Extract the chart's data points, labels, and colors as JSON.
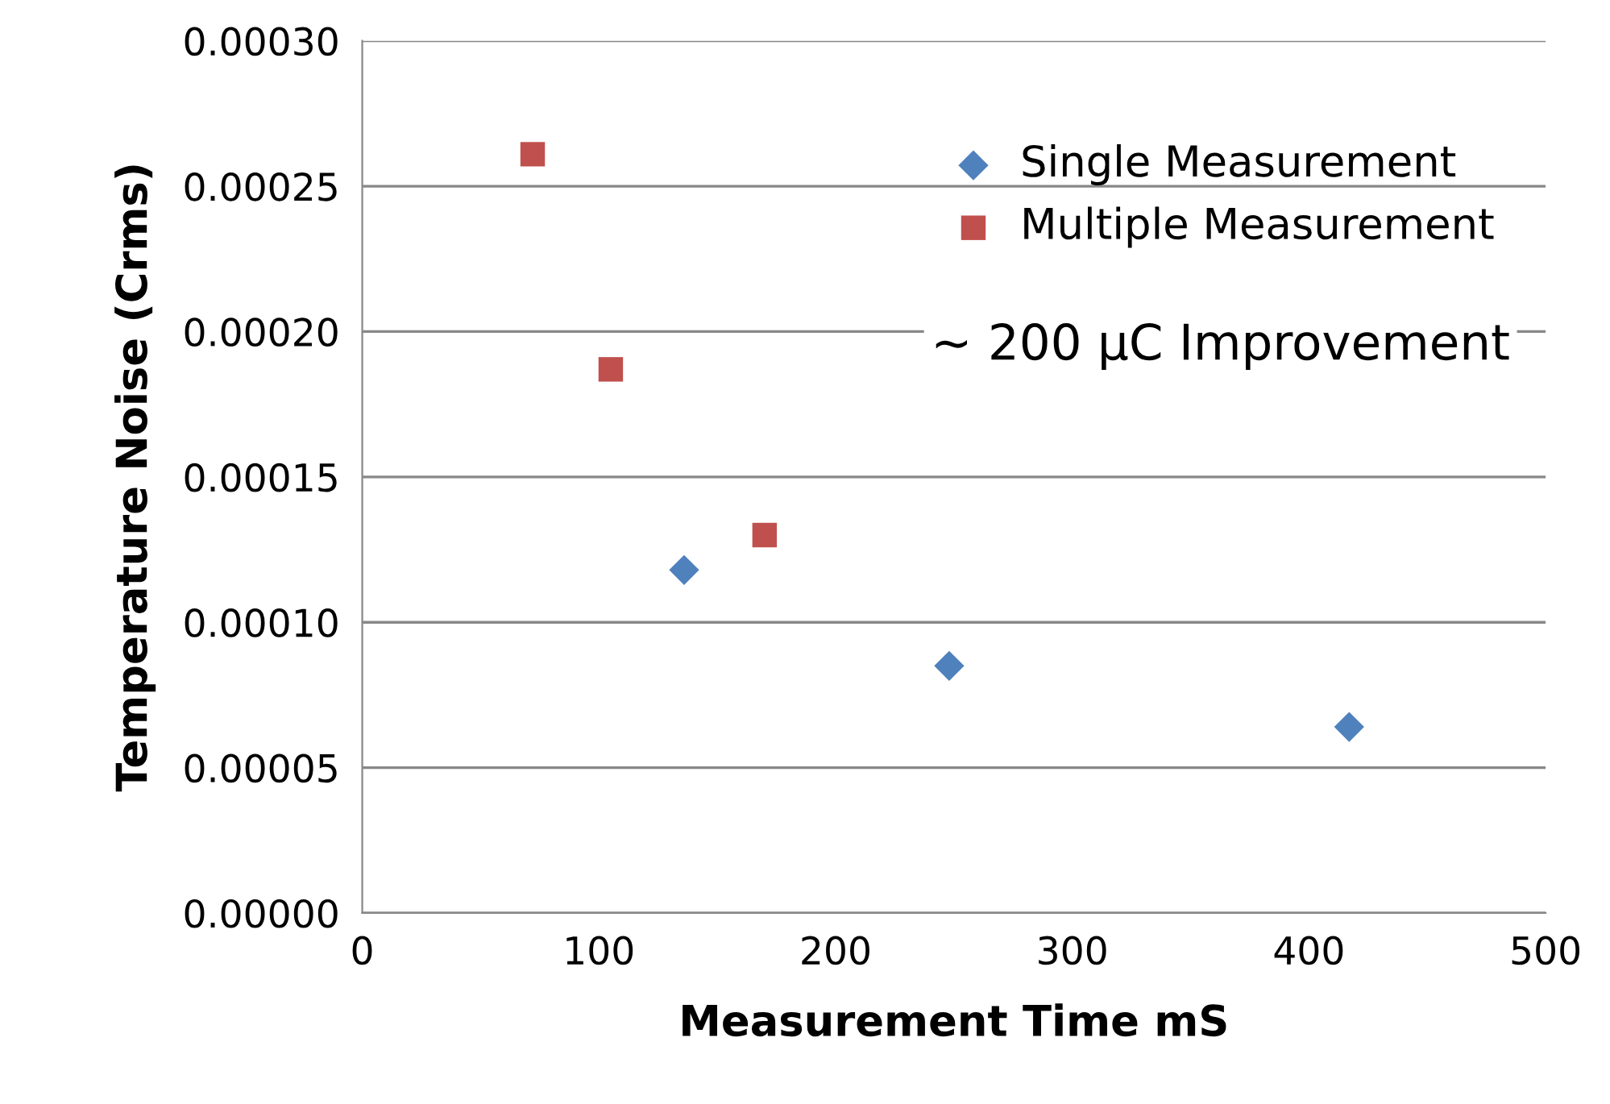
{
  "chart_data": {
    "type": "scatter",
    "xlabel": "Measurement Time mS",
    "ylabel": "Temperature Noise (Crms)",
    "series": [
      {
        "name": "Single Measurement",
        "color": "#4f81bd",
        "marker": "diamond",
        "x": [
          136,
          248,
          417
        ],
        "values": [
          0.000118,
          8.5e-05,
          6.4e-05
        ]
      },
      {
        "name": "Multiple Measurement",
        "color": "#c0504d",
        "marker": "square",
        "x": [
          72,
          105,
          170
        ],
        "values": [
          0.000261,
          0.000187,
          0.00013
        ]
      }
    ],
    "xlim": [
      0,
      500
    ],
    "xticks": [
      0,
      100,
      200,
      300,
      400,
      500
    ],
    "ylim": [
      0,
      0.0003
    ],
    "yticks": [
      {
        "value": 0,
        "label": "0.00000"
      },
      {
        "value": 5e-05,
        "label": "0.00005"
      },
      {
        "value": 0.0001,
        "label": "0.00010"
      },
      {
        "value": 0.00015,
        "label": "0.00015"
      },
      {
        "value": 0.0002,
        "label": "0.00020"
      },
      {
        "value": 0.00025,
        "label": "0.00025"
      },
      {
        "value": 0.0003,
        "label": "0.00030"
      }
    ],
    "grid": "y",
    "legend": "top right",
    "annotations": [
      "~ 200 μC Improvement"
    ]
  }
}
